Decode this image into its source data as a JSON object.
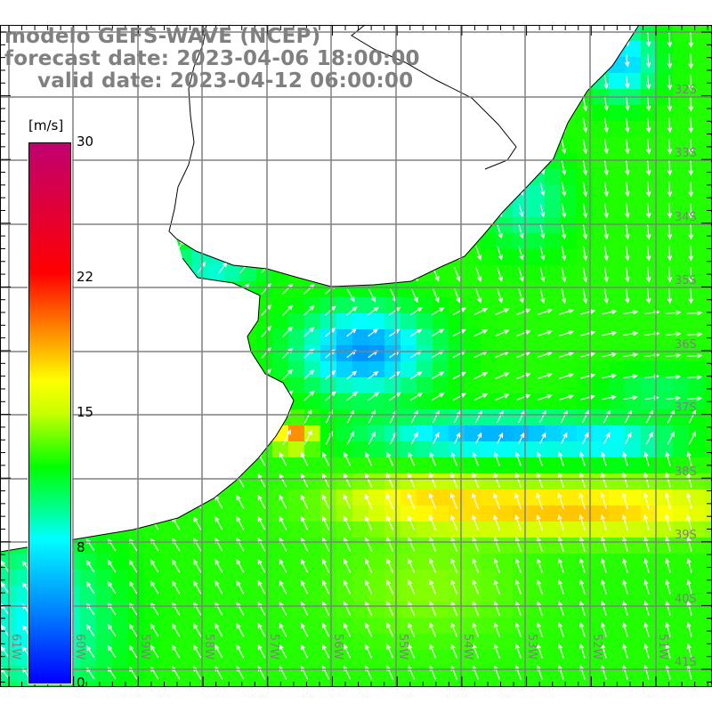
{
  "title": {
    "line1": "modelo GEFS-WAVE (NCEP)",
    "line2": "forecast date: 2023-04-06 18:00:00",
    "line3": "valid date: 2023-04-12 06:00:00"
  },
  "colorbar": {
    "unit": "[m/s]",
    "ticks": [
      {
        "value": 30,
        "label": "30"
      },
      {
        "value": 22,
        "label": "22"
      },
      {
        "value": 15,
        "label": "15"
      },
      {
        "value": 8,
        "label": "8"
      },
      {
        "value": 0,
        "label": "0"
      }
    ],
    "stops": [
      {
        "v": 0,
        "c": "#0000ff"
      },
      {
        "v": 4,
        "c": "#0080ff"
      },
      {
        "v": 8,
        "c": "#00ffff"
      },
      {
        "v": 10,
        "c": "#00ff80"
      },
      {
        "v": 12,
        "c": "#00ff00"
      },
      {
        "v": 15,
        "c": "#c8ff00"
      },
      {
        "v": 17,
        "c": "#ffff00"
      },
      {
        "v": 20,
        "c": "#ff8000"
      },
      {
        "v": 23,
        "c": "#ff0000"
      },
      {
        "v": 30,
        "c": "#c00070"
      }
    ]
  },
  "lat_labels": [
    "32S",
    "33S",
    "34S",
    "35S",
    "36S",
    "37S",
    "38S",
    "39S",
    "40S",
    "41S"
  ],
  "lon_labels": [
    "61W",
    "60W",
    "59W",
    "58W",
    "57W",
    "56W",
    "55W",
    "54W",
    "53W",
    "52W",
    "51W"
  ],
  "colors": {
    "land": "#ffffff",
    "coast": "#000000",
    "grid": "#808080",
    "arrow": "#ffffff"
  }
}
